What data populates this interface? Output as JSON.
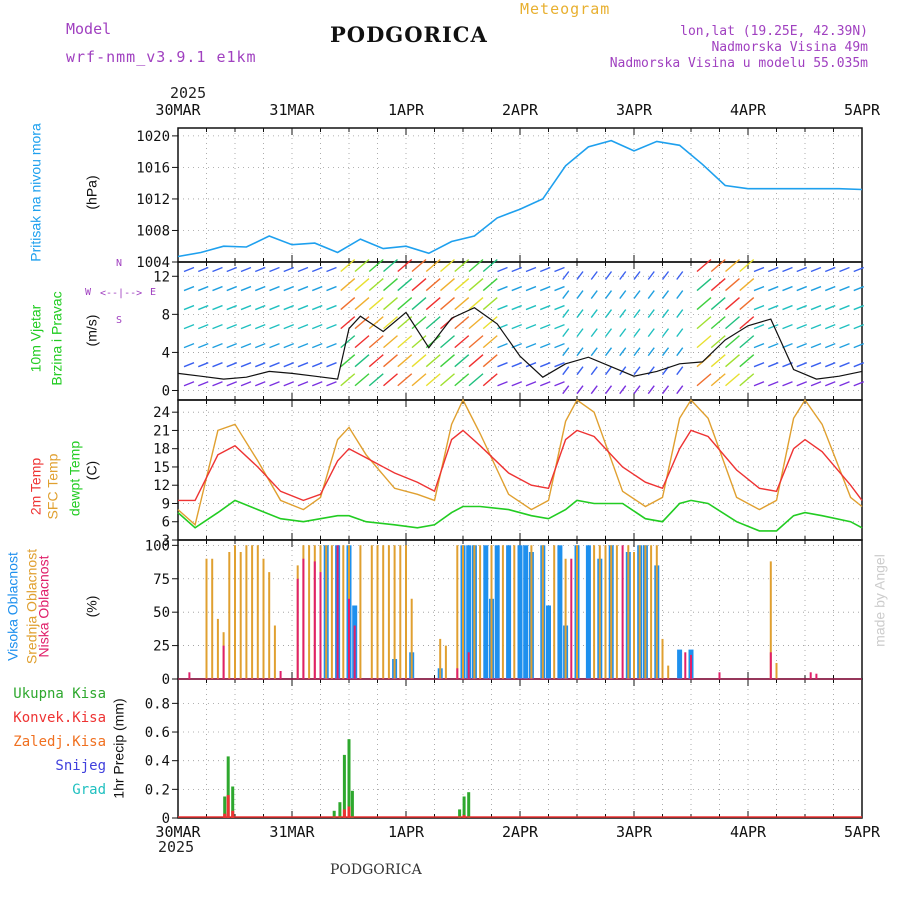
{
  "header": {
    "model_label": "Model",
    "model_name": "wrf-nmm_v3.9.1 e1km",
    "station": "PODGORICA",
    "title": "Meteogram",
    "lonlat": "lon,lat (19.25E, 42.39N)",
    "elevation": "Nadmorska Visina 49m",
    "model_elevation": "Nadmorska Visina u modelu 55.035m",
    "year_top": "2025",
    "year_bottom": "2025",
    "footer_station": "PODGORICA",
    "credit": "made by Angel"
  },
  "colors": {
    "pressure": "#1ea0ee",
    "temp2m": "#e33",
    "sfc": "#e0a030",
    "dew": "#22cc22",
    "high_cloud": "#1e90ee",
    "mid_cloud": "#e0a030",
    "low_cloud": "#e0206a",
    "total_precip": "#2ea82e",
    "conv_precip": "#e33",
    "frz_precip": "#f07020",
    "snow": "#4040dd",
    "hail": "#20c0c0",
    "purple_text": "#a040c0",
    "title_text": "#e8b030"
  },
  "chart_data": [
    {
      "type": "line",
      "panel": "pressure",
      "ylabel": [
        "Pritisak na nivou mora",
        "(hPa)"
      ],
      "ylim": [
        1004,
        1021
      ],
      "yticks": [
        1004,
        1008,
        1012,
        1016,
        1020
      ],
      "x_labels": [
        "30MAR",
        "31MAR",
        "1APR",
        "2APR",
        "3APR",
        "4APR",
        "5APR"
      ],
      "grid": true,
      "series": [
        {
          "x": [
            0,
            0.2,
            0.4,
            0.6,
            0.8,
            1.0,
            1.2,
            1.4,
            1.6,
            1.8,
            2.0,
            2.2,
            2.4,
            2.6,
            2.8,
            3.0,
            3.2,
            3.4,
            3.6,
            3.8,
            4.0,
            4.2,
            4.4,
            4.6,
            4.8,
            5.0,
            5.2,
            5.4,
            5.6,
            5.8,
            6.0
          ],
          "y": [
            1004.7,
            1005.2,
            1006.0,
            1005.9,
            1007.3,
            1006.2,
            1006.4,
            1005.2,
            1006.9,
            1005.7,
            1006.0,
            1005.1,
            1006.6,
            1007.3,
            1009.6,
            1010.7,
            1012.0,
            1016.2,
            1018.6,
            1019.4,
            1018.1,
            1019.3,
            1018.8,
            1016.4,
            1013.7,
            1013.3,
            1013.3,
            1013.3,
            1013.3,
            1013.3,
            1013.2
          ]
        }
      ]
    },
    {
      "type": "line",
      "panel": "wind",
      "ylabel": [
        "10m Vjetar",
        "Brzina i Pravac",
        "(m/s)"
      ],
      "compass": [
        "N",
        "W",
        "E",
        "S"
      ],
      "ylim": [
        -1,
        13.5
      ],
      "yticks": [
        0,
        4,
        8,
        12
      ],
      "grid": true,
      "series": [
        {
          "name": "speed",
          "x": [
            0,
            0.2,
            0.4,
            0.6,
            0.8,
            1.0,
            1.2,
            1.4,
            1.5,
            1.6,
            1.8,
            2.0,
            2.2,
            2.4,
            2.6,
            2.8,
            3.0,
            3.2,
            3.4,
            3.6,
            3.8,
            4.0,
            4.2,
            4.4,
            4.6,
            4.8,
            5.0,
            5.2,
            5.4,
            5.6,
            5.8,
            6.0
          ],
          "y": [
            1.8,
            1.5,
            1.2,
            1.4,
            2.0,
            1.8,
            1.5,
            1.2,
            6.5,
            7.8,
            6.2,
            8.2,
            4.5,
            7.6,
            8.7,
            7.0,
            3.6,
            1.4,
            2.8,
            3.5,
            2.5,
            1.5,
            2.0,
            2.8,
            3.0,
            5.3,
            6.8,
            7.5,
            2.2,
            1.2,
            1.5,
            2.0
          ]
        }
      ]
    },
    {
      "type": "line",
      "panel": "temperature",
      "ylabel": [
        "2m Temp",
        "SFC Temp",
        "dewpt Temp",
        "(C)"
      ],
      "ylim": [
        3,
        26
      ],
      "yticks": [
        3,
        6,
        9,
        12,
        15,
        18,
        21,
        24
      ],
      "grid": true,
      "series": [
        {
          "name": "2m Temp",
          "x": [
            0,
            0.15,
            0.35,
            0.5,
            0.7,
            0.9,
            1.1,
            1.25,
            1.4,
            1.5,
            1.65,
            1.9,
            2.1,
            2.25,
            2.4,
            2.5,
            2.65,
            2.9,
            3.1,
            3.25,
            3.4,
            3.5,
            3.65,
            3.9,
            4.1,
            4.25,
            4.4,
            4.5,
            4.65,
            4.9,
            5.1,
            5.25,
            5.4,
            5.5,
            5.65,
            5.9,
            6.0
          ],
          "y": [
            9.5,
            9.5,
            17.0,
            18.5,
            15.0,
            11.0,
            9.5,
            10.5,
            16.0,
            18.0,
            16.5,
            14.0,
            12.5,
            11.0,
            19.5,
            21.0,
            18.5,
            14.0,
            12.0,
            11.5,
            19.5,
            21.0,
            20.0,
            15.0,
            12.5,
            11.5,
            18.0,
            21.0,
            20.0,
            14.5,
            11.5,
            11.0,
            18.0,
            19.5,
            17.5,
            12.0,
            9.5
          ]
        },
        {
          "name": "SFC Temp",
          "x": [
            0,
            0.15,
            0.35,
            0.5,
            0.7,
            0.9,
            1.1,
            1.25,
            1.4,
            1.5,
            1.65,
            1.9,
            2.1,
            2.25,
            2.4,
            2.5,
            2.65,
            2.9,
            3.1,
            3.25,
            3.4,
            3.5,
            3.65,
            3.9,
            4.1,
            4.25,
            4.4,
            4.5,
            4.65,
            4.9,
            5.1,
            5.25,
            5.4,
            5.5,
            5.65,
            5.9,
            6.0
          ],
          "y": [
            8.0,
            5.5,
            21.0,
            22.0,
            16.0,
            9.5,
            8.0,
            10.0,
            19.5,
            21.5,
            17.0,
            11.5,
            10.5,
            9.5,
            22.0,
            26.0,
            20.5,
            10.5,
            8.0,
            9.5,
            22.5,
            26.0,
            24.0,
            11.0,
            8.5,
            10.0,
            23.0,
            26.0,
            23.0,
            10.0,
            8.0,
            9.5,
            23.0,
            26.0,
            22.0,
            10.0,
            8.5
          ]
        },
        {
          "name": "dewpt Temp",
          "x": [
            0,
            0.15,
            0.35,
            0.5,
            0.7,
            0.9,
            1.1,
            1.25,
            1.4,
            1.5,
            1.65,
            1.9,
            2.1,
            2.25,
            2.4,
            2.5,
            2.65,
            2.9,
            3.1,
            3.25,
            3.4,
            3.5,
            3.65,
            3.9,
            4.1,
            4.25,
            4.4,
            4.5,
            4.65,
            4.9,
            5.1,
            5.25,
            5.4,
            5.5,
            5.65,
            5.9,
            6.0
          ],
          "y": [
            7.5,
            5.0,
            7.5,
            9.5,
            8.0,
            6.5,
            6.0,
            6.5,
            7.0,
            7.0,
            6.0,
            5.5,
            5.0,
            5.5,
            7.5,
            8.5,
            8.5,
            8.0,
            7.0,
            6.5,
            8.0,
            9.5,
            9.0,
            9.0,
            6.5,
            6.0,
            9.0,
            9.5,
            9.0,
            6.0,
            4.5,
            4.5,
            7.0,
            7.5,
            7.0,
            6.0,
            5.0
          ]
        }
      ]
    },
    {
      "type": "bar",
      "panel": "cloud",
      "ylabel": [
        "Visoka Oblacnost",
        "Srednja Oblacnost",
        "Niska Oblacnost",
        "(%)"
      ],
      "ylim": [
        0,
        104
      ],
      "yticks": [
        0,
        25,
        50,
        75,
        100
      ],
      "grid": true,
      "series": [
        {
          "name": "Visoka Oblacnost",
          "x": [
            1.3,
            1.4,
            1.5,
            1.55,
            1.9,
            2.05,
            2.3,
            2.5,
            2.55,
            2.6,
            2.7,
            2.75,
            2.8,
            2.9,
            3.0,
            3.05,
            3.1,
            3.2,
            3.25,
            3.35,
            3.4,
            3.5,
            3.6,
            3.7,
            3.8,
            3.95,
            4.05,
            4.1,
            4.2,
            4.4,
            4.5
          ],
          "y": [
            100,
            100,
            100,
            55,
            15,
            20,
            8,
            100,
            100,
            100,
            100,
            60,
            100,
            100,
            100,
            100,
            95,
            100,
            55,
            100,
            40,
            100,
            100,
            90,
            100,
            95,
            100,
            100,
            85,
            22,
            22
          ]
        },
        {
          "name": "Srednja Oblacnost",
          "x": [
            0.25,
            0.3,
            0.35,
            0.4,
            0.45,
            0.5,
            0.55,
            0.6,
            0.65,
            0.7,
            0.75,
            0.8,
            0.85,
            1.05,
            1.1,
            1.15,
            1.2,
            1.25,
            1.3,
            1.35,
            1.45,
            1.5,
            1.6,
            1.7,
            1.75,
            1.8,
            1.85,
            1.9,
            1.95,
            2.0,
            2.05,
            2.3,
            2.35,
            2.45,
            2.5,
            2.6,
            2.65,
            2.75,
            2.85,
            2.95,
            3.1,
            3.2,
            3.3,
            3.4,
            3.5,
            3.65,
            3.7,
            3.75,
            3.8,
            3.85,
            3.95,
            4.0,
            4.05,
            4.1,
            4.15,
            4.2,
            4.25,
            4.3,
            5.2,
            5.25
          ],
          "y": [
            90,
            90,
            45,
            35,
            95,
            100,
            95,
            100,
            100,
            100,
            90,
            80,
            40,
            85,
            100,
            100,
            100,
            100,
            100,
            100,
            100,
            100,
            100,
            100,
            100,
            100,
            100,
            100,
            100,
            100,
            60,
            30,
            25,
            100,
            100,
            100,
            100,
            100,
            100,
            100,
            100,
            100,
            100,
            90,
            100,
            100,
            100,
            100,
            100,
            100,
            100,
            95,
            100,
            100,
            100,
            100,
            30,
            10,
            88,
            12
          ]
        },
        {
          "name": "Niska Oblacnost",
          "x": [
            0.1,
            0.4,
            0.9,
            1.05,
            1.1,
            1.2,
            1.25,
            1.4,
            1.5,
            1.55,
            2.45,
            2.55,
            3.45,
            3.9,
            4.45,
            4.5,
            4.75,
            5.2,
            5.55,
            5.6
          ],
          "y": [
            5,
            25,
            6,
            75,
            90,
            88,
            80,
            100,
            60,
            40,
            8,
            20,
            90,
            100,
            20,
            18,
            5,
            20,
            5,
            4
          ]
        }
      ]
    },
    {
      "type": "bar",
      "panel": "precip",
      "ylabel": [
        "1hr Precip (mm)"
      ],
      "ylim": [
        0,
        0.97
      ],
      "yticks": [
        0,
        0.2,
        0.4,
        0.6,
        0.8
      ],
      "legend": [
        "Ukupna Kisa",
        "Konvek.Kisa",
        "Zaledj.Kisa",
        "Snijeg",
        "Grad"
      ],
      "grid": true,
      "series": [
        {
          "name": "Ukupna Kisa",
          "x": [
            0.41,
            0.44,
            0.48,
            1.37,
            1.42,
            1.46,
            1.5,
            1.53,
            2.47,
            2.51,
            2.55
          ],
          "y": [
            0.15,
            0.43,
            0.22,
            0.05,
            0.11,
            0.44,
            0.55,
            0.19,
            0.06,
            0.15,
            0.18
          ]
        },
        {
          "name": "Konvek.Kisa",
          "x": [
            0.41,
            0.44,
            0.48,
            1.46,
            1.5,
            2.51
          ],
          "y": [
            0.03,
            0.16,
            0.05,
            0.06,
            0.08,
            0.02
          ]
        }
      ]
    }
  ],
  "labels": {
    "x_labels": [
      "30MAR",
      "31MAR",
      "1APR",
      "2APR",
      "3APR",
      "4APR",
      "5APR"
    ],
    "legend": [
      "Ukupna Kisa",
      "Konvek.Kisa",
      "Zaledj.Kisa",
      "Snijeg",
      "Grad"
    ]
  }
}
